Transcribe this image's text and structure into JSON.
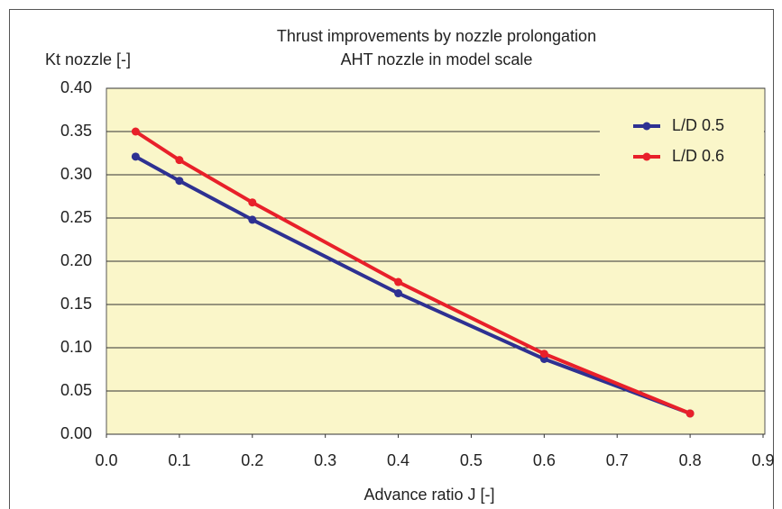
{
  "chart_data": {
    "type": "line",
    "title": [
      "Thrust improvements by nozzle prolongation",
      "AHT nozzle in model scale"
    ],
    "ylabel": "Kt nozzle [-]",
    "xlabel": "Advance ratio J [-]",
    "x": [
      0.04,
      0.1,
      0.2,
      0.4,
      0.6,
      0.8
    ],
    "series": [
      {
        "name": "L/D 0.5",
        "color": "#2e3192",
        "values": [
          0.321,
          0.293,
          0.248,
          0.163,
          0.087,
          0.024
        ]
      },
      {
        "name": "L/D 0.6",
        "color": "#e8202a",
        "values": [
          0.35,
          0.317,
          0.268,
          0.176,
          0.093,
          0.024
        ]
      }
    ],
    "xlim": [
      0,
      0.9
    ],
    "xticks": [
      {
        "value": 0,
        "label": "0.0"
      },
      0.1,
      0.2,
      0.3,
      0.4,
      0.5,
      0.6,
      0.7,
      0.8,
      0.9
    ],
    "ylim": [
      0,
      0.4
    ],
    "yticks": [
      {
        "value": 0,
        "label": "0.00"
      },
      0.05,
      {
        "value": 0.1,
        "label": "0.10"
      },
      0.15,
      {
        "value": 0.2,
        "label": "0.20"
      },
      0.25,
      {
        "value": 0.3,
        "label": "0.30"
      },
      0.35,
      {
        "value": 0.4,
        "label": "0.40"
      }
    ],
    "grid": true,
    "legend": "upper right"
  }
}
